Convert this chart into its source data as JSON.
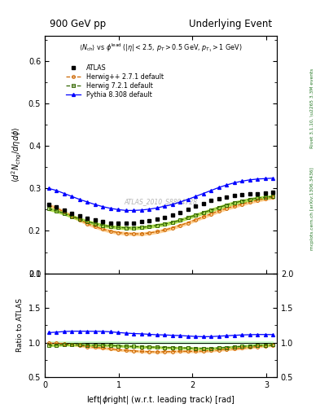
{
  "title_left": "900 GeV pp",
  "title_right": "Underlying Event",
  "subtitle": "$\\langle N_{\\rm ch}\\rangle$ vs $\\phi^{\\rm lead}$ ($|\\eta| < 2.5$, $p_T > 0.5$ GeV, $p_{T_1} > 1$ GeV)",
  "ylabel_main": "$\\langle d^2 N_{\\rm chg}/d\\eta d\\phi\\rangle$",
  "ylabel_ratio": "Ratio to ATLAS",
  "xlabel": "left$|\\phi$right$|$ (w.r.t. leading track) [rad]",
  "watermark": "ATLAS_2010_S8894728",
  "right_label_top": "Rivet 3.1.10, \\u2265 3.3M events",
  "right_label_bot": "mcplots.cern.ch [arXiv:1306.3436]",
  "ylim_main": [
    0.1,
    0.66
  ],
  "ylim_ratio": [
    0.5,
    2.0
  ],
  "xlim": [
    0.0,
    3.14159
  ],
  "x_values": [
    0.052,
    0.157,
    0.262,
    0.367,
    0.471,
    0.576,
    0.68,
    0.785,
    0.89,
    0.994,
    1.099,
    1.204,
    1.309,
    1.414,
    1.518,
    1.623,
    1.728,
    1.833,
    1.937,
    2.042,
    2.147,
    2.251,
    2.356,
    2.461,
    2.565,
    2.67,
    2.775,
    2.88,
    2.984,
    3.089
  ],
  "atlas_y": [
    0.262,
    0.256,
    0.248,
    0.241,
    0.235,
    0.23,
    0.225,
    0.221,
    0.219,
    0.218,
    0.218,
    0.219,
    0.221,
    0.224,
    0.228,
    0.232,
    0.237,
    0.243,
    0.25,
    0.258,
    0.265,
    0.271,
    0.276,
    0.28,
    0.283,
    0.285,
    0.287,
    0.288,
    0.289,
    0.29
  ],
  "herwig_pp_y": [
    0.26,
    0.254,
    0.244,
    0.235,
    0.226,
    0.217,
    0.21,
    0.204,
    0.199,
    0.196,
    0.194,
    0.193,
    0.193,
    0.195,
    0.198,
    0.202,
    0.207,
    0.213,
    0.219,
    0.226,
    0.233,
    0.24,
    0.247,
    0.253,
    0.258,
    0.263,
    0.268,
    0.272,
    0.276,
    0.279
  ],
  "herwig7_y": [
    0.252,
    0.247,
    0.241,
    0.234,
    0.228,
    0.222,
    0.217,
    0.213,
    0.21,
    0.208,
    0.207,
    0.207,
    0.208,
    0.21,
    0.213,
    0.216,
    0.22,
    0.225,
    0.231,
    0.237,
    0.243,
    0.249,
    0.255,
    0.261,
    0.266,
    0.27,
    0.274,
    0.277,
    0.279,
    0.281
  ],
  "pythia_y": [
    0.3,
    0.295,
    0.288,
    0.281,
    0.274,
    0.268,
    0.262,
    0.257,
    0.253,
    0.25,
    0.248,
    0.248,
    0.249,
    0.251,
    0.254,
    0.258,
    0.262,
    0.268,
    0.274,
    0.281,
    0.288,
    0.295,
    0.302,
    0.308,
    0.313,
    0.317,
    0.32,
    0.322,
    0.323,
    0.324
  ],
  "atlas_color": "black",
  "herwig_pp_color": "#cc6600",
  "herwig7_color": "#336600",
  "pythia_color": "blue",
  "atlas_marker": "s",
  "herwig_pp_marker": "o",
  "herwig7_marker": "s",
  "pythia_marker": "^",
  "atlas_label": "ATLAS",
  "herwig_pp_label": "Herwig++ 2.7.1 default",
  "herwig7_label": "Herwig 7.2.1 default",
  "pythia_label": "Pythia 8.308 default",
  "atlas_err": 0.006,
  "herwig_pp_err": 0.003,
  "herwig7_err": 0.003,
  "pythia_err": 0.003,
  "herwig7_band_color": "#aadd44",
  "herwig_pp_band_color": "#ffcc88",
  "atlas_band_color": "#ccffcc",
  "ratio_herwig_pp": [
    0.992,
    0.992,
    0.984,
    0.975,
    0.961,
    0.943,
    0.933,
    0.924,
    0.912,
    0.899,
    0.89,
    0.882,
    0.875,
    0.871,
    0.868,
    0.871,
    0.873,
    0.877,
    0.876,
    0.876,
    0.879,
    0.886,
    0.895,
    0.904,
    0.912,
    0.921,
    0.933,
    0.944,
    0.955,
    0.962
  ],
  "ratio_herwig7": [
    0.962,
    0.965,
    0.972,
    0.971,
    0.97,
    0.965,
    0.964,
    0.964,
    0.962,
    0.954,
    0.95,
    0.945,
    0.942,
    0.938,
    0.936,
    0.931,
    0.928,
    0.926,
    0.924,
    0.919,
    0.917,
    0.918,
    0.924,
    0.932,
    0.94,
    0.947,
    0.955,
    0.962,
    0.965,
    0.969
  ],
  "ratio_pythia": [
    1.145,
    1.152,
    1.161,
    1.166,
    1.166,
    1.165,
    1.164,
    1.163,
    1.157,
    1.147,
    1.138,
    1.132,
    1.128,
    1.121,
    1.114,
    1.112,
    1.106,
    1.103,
    1.096,
    1.09,
    1.087,
    1.088,
    1.094,
    1.1,
    1.106,
    1.112,
    1.115,
    1.118,
    1.118,
    1.117
  ]
}
